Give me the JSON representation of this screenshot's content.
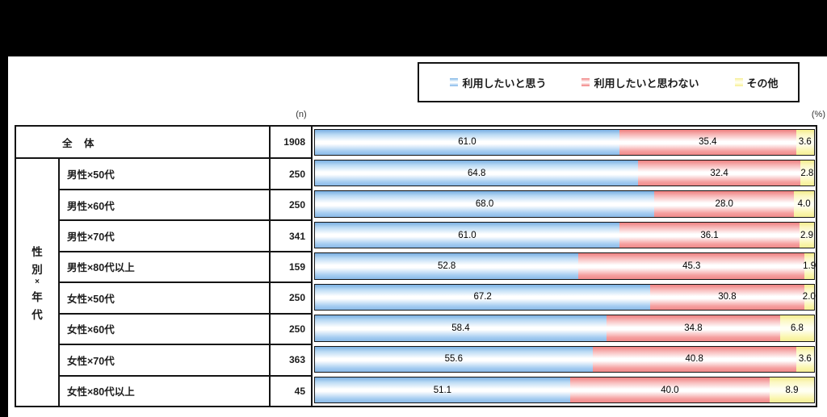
{
  "legend": {
    "items": [
      {
        "key": "want-to-use",
        "label": "利用したいと思う",
        "color": "#9cc6ee"
      },
      {
        "key": "do-not-want-to-use",
        "label": "利用したいと思わない",
        "color": "#f29595"
      },
      {
        "key": "other",
        "label": "その他",
        "color": "#f7f0a0"
      }
    ]
  },
  "axis": {
    "n_label": "(n)",
    "pct_label": "(%)"
  },
  "group": {
    "label": "性別×年代",
    "chars": [
      "性",
      "別",
      "×",
      "年",
      "代"
    ]
  },
  "chart_data": {
    "type": "bar",
    "stacked": true,
    "orientation": "horizontal",
    "unit": "%",
    "xlim": [
      0,
      100
    ],
    "legend_position": "top",
    "grid": false,
    "categories": [
      "全　体",
      "男性×50代",
      "男性×60代",
      "男性×70代",
      "男性×80代以上",
      "女性×50代",
      "女性×60代",
      "女性×70代",
      "女性×80代以上"
    ],
    "n_values": [
      1908,
      250,
      250,
      341,
      159,
      250,
      250,
      363,
      45
    ],
    "group_label": "性別×年代",
    "grouped_rows_start": 1,
    "series": [
      {
        "name": "利用したいと思う",
        "color": "#9cc6ee",
        "values": [
          61.0,
          64.8,
          68.0,
          61.0,
          52.8,
          67.2,
          58.4,
          55.6,
          51.1
        ]
      },
      {
        "name": "利用したいと思わない",
        "color": "#f29595",
        "values": [
          35.4,
          32.4,
          28.0,
          36.1,
          45.3,
          30.8,
          34.8,
          40.8,
          40.0
        ]
      },
      {
        "name": "その他",
        "color": "#f7f0a0",
        "values": [
          3.6,
          2.8,
          4.0,
          2.9,
          1.9,
          2.0,
          6.8,
          3.6,
          8.9
        ]
      }
    ]
  }
}
